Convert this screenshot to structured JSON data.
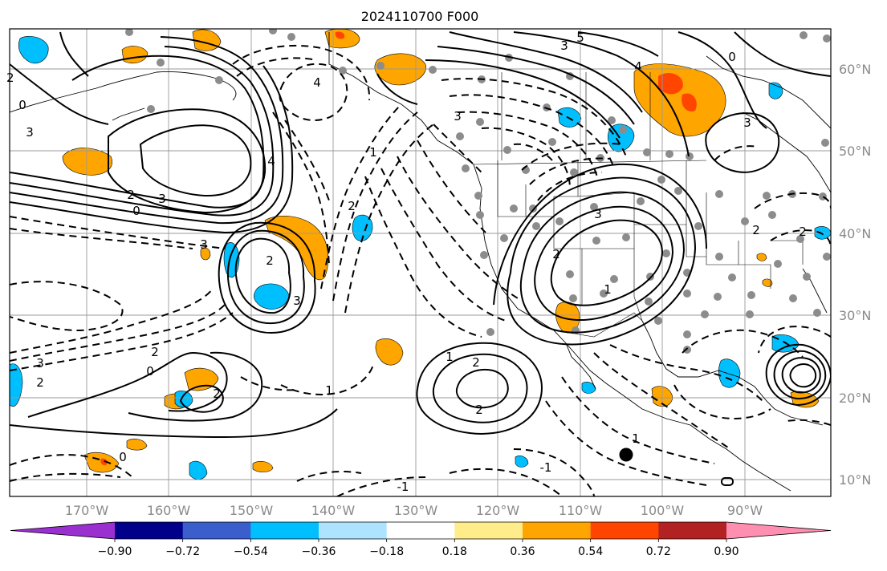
{
  "title": "2024110700 F000",
  "lat_labels": [
    "60°N",
    "50°N",
    "40°N",
    "30°N",
    "20°N",
    "10°N"
  ],
  "lon_labels": [
    "170°W",
    "160°W",
    "150°W",
    "140°W",
    "130°W",
    "120°W",
    "110°W",
    "100°W",
    "90°W"
  ],
  "colorbar": {
    "colors": [
      "#9b30d0",
      "#00008b",
      "#3a5fcd",
      "#00bfff",
      "#aee3ff",
      "#ffffff",
      "#ffec8b",
      "#ffa500",
      "#ff4500",
      "#b22222",
      "#ff8fb1"
    ],
    "ticks": [
      "−0.90",
      "−0.72",
      "−0.54",
      "−0.36",
      "−0.18",
      "0.18",
      "0.36",
      "0.54",
      "0.72",
      "0.90"
    ]
  },
  "contour_labels": [
    {
      "text": "5"
    },
    {
      "text": "3"
    },
    {
      "text": "0"
    },
    {
      "text": "4"
    },
    {
      "text": "3"
    },
    {
      "text": "2"
    },
    {
      "text": "3"
    },
    {
      "text": "0"
    },
    {
      "text": "1"
    },
    {
      "text": "4"
    },
    {
      "text": "3"
    },
    {
      "text": "2"
    },
    {
      "text": "2"
    },
    {
      "text": "3"
    },
    {
      "text": "3"
    },
    {
      "text": "2"
    },
    {
      "text": "0"
    },
    {
      "text": "3"
    },
    {
      "text": "2"
    },
    {
      "text": "2"
    },
    {
      "text": "1"
    },
    {
      "text": "2"
    },
    {
      "text": "2"
    },
    {
      "text": "2"
    },
    {
      "text": "0"
    },
    {
      "text": "1"
    },
    {
      "text": "1"
    },
    {
      "text": "1"
    },
    {
      "text": "-1"
    },
    {
      "text": "-1"
    },
    {
      "text": "2"
    },
    {
      "text": "2"
    },
    {
      "text": "3"
    },
    {
      "text": "4"
    },
    {
      "text": "3"
    },
    {
      "text": "2"
    },
    {
      "text": "0"
    }
  ]
}
